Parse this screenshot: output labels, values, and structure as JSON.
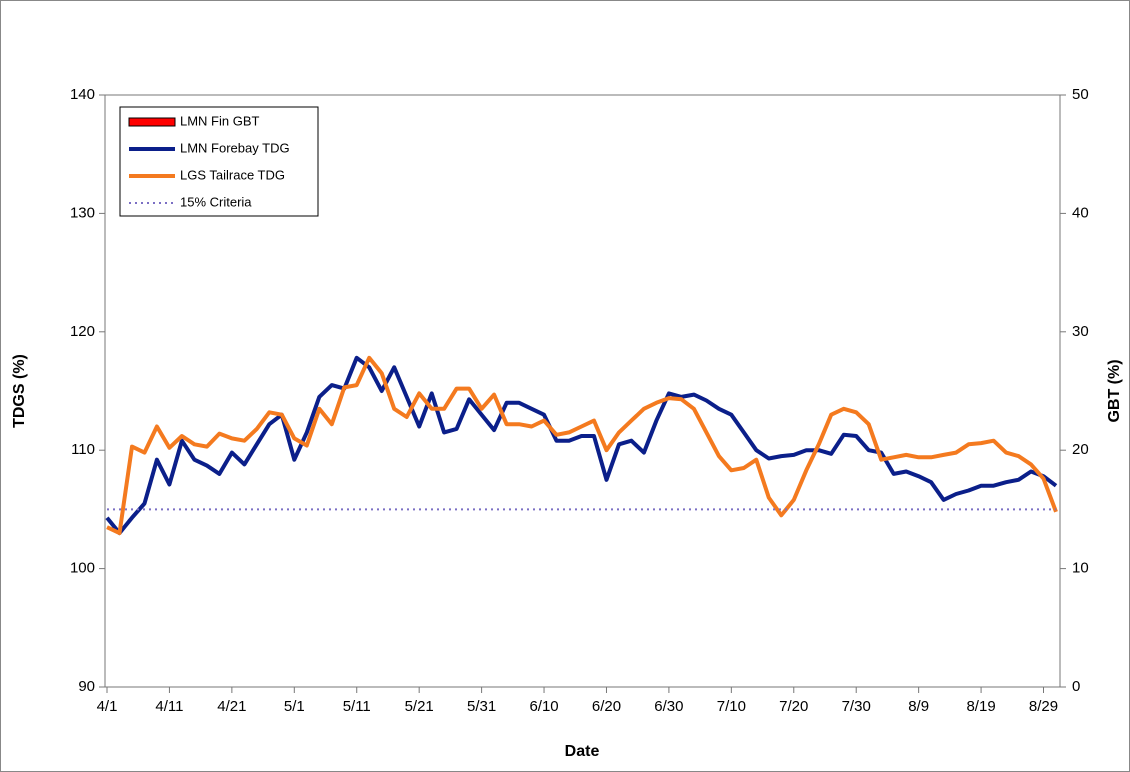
{
  "chart_data": {
    "type": "line",
    "xlabel": "Date",
    "ylabel": "TDGS (%)",
    "y2label": "GBT (%)",
    "x": [
      "4/1",
      "4/3",
      "4/5",
      "4/7",
      "4/9",
      "4/11",
      "4/13",
      "4/15",
      "4/17",
      "4/19",
      "4/21",
      "4/23",
      "4/25",
      "4/27",
      "4/29",
      "5/1",
      "5/3",
      "5/5",
      "5/7",
      "5/9",
      "5/11",
      "5/13",
      "5/15",
      "5/17",
      "5/19",
      "5/21",
      "5/23",
      "5/25",
      "5/27",
      "5/29",
      "5/31",
      "6/2",
      "6/4",
      "6/6",
      "6/8",
      "6/10",
      "6/12",
      "6/14",
      "6/16",
      "6/18",
      "6/20",
      "6/22",
      "6/24",
      "6/26",
      "6/28",
      "6/30",
      "7/2",
      "7/4",
      "7/6",
      "7/8",
      "7/10",
      "7/12",
      "7/14",
      "7/16",
      "7/18",
      "7/20",
      "7/22",
      "7/24",
      "7/26",
      "7/28",
      "7/30",
      "8/1",
      "8/3",
      "8/5",
      "8/7",
      "8/9",
      "8/11",
      "8/13",
      "8/15",
      "8/17",
      "8/19",
      "8/21",
      "8/23",
      "8/25",
      "8/27",
      "8/29",
      "8/31"
    ],
    "xticks": [
      "4/1",
      "4/11",
      "4/21",
      "5/1",
      "5/11",
      "5/21",
      "5/31",
      "6/10",
      "6/20",
      "6/30",
      "7/10",
      "7/20",
      "7/30",
      "8/9",
      "8/19",
      "8/29"
    ],
    "ylim": [
      90,
      140
    ],
    "yticks": [
      90,
      100,
      110,
      120,
      130,
      140
    ],
    "y2lim": [
      0,
      50
    ],
    "y2ticks": [
      0,
      10,
      20,
      30,
      40,
      50
    ],
    "legend": "upper left",
    "series": [
      {
        "name": "LMN Fin GBT",
        "color": "#ff0000",
        "kind": "bar",
        "axis": "y2",
        "values": [
          null,
          null,
          null,
          null,
          null,
          null,
          null,
          null,
          null,
          null,
          null,
          null,
          null,
          null,
          null,
          null,
          null,
          null,
          null,
          null,
          null,
          null,
          null,
          null,
          null,
          null,
          null,
          null,
          null,
          null,
          null,
          null,
          null,
          null,
          null,
          null,
          null,
          null,
          null,
          null,
          null,
          null,
          null,
          null,
          null,
          null,
          null,
          null,
          null,
          null,
          null,
          null,
          null,
          null,
          null,
          null,
          null,
          null,
          null,
          null,
          null,
          null,
          null,
          null,
          null,
          null,
          null,
          null,
          null,
          null,
          null,
          null,
          null,
          null,
          null,
          null,
          null
        ]
      },
      {
        "name": "LMN Forebay TDG",
        "color": "#0b1f8a",
        "kind": "line",
        "values": [
          104.3,
          103.0,
          104.3,
          105.5,
          109.2,
          107.1,
          110.8,
          109.2,
          108.7,
          108.0,
          109.8,
          108.8,
          110.5,
          112.2,
          113.0,
          109.2,
          111.5,
          114.5,
          115.5,
          115.2,
          117.8,
          117.0,
          115.0,
          117.0,
          114.5,
          112.0,
          114.8,
          111.5,
          111.8,
          114.3,
          113.0,
          111.7,
          114.0,
          114.0,
          113.5,
          113.0,
          110.8,
          110.8,
          111.2,
          111.2,
          107.5,
          110.5,
          110.8,
          109.8,
          112.5,
          114.8,
          114.5,
          114.7,
          114.2,
          113.5,
          113.0,
          111.5,
          110.0,
          109.3,
          109.5,
          109.6,
          110.0,
          110.0,
          109.7,
          111.3,
          111.2,
          110.0,
          109.8,
          108.0,
          108.2,
          107.8,
          107.3,
          105.8,
          106.3,
          106.6,
          107.0,
          107.0,
          107.3,
          107.5,
          108.2,
          107.8,
          107.0
        ]
      },
      {
        "name": "LGS Tailrace TDG",
        "color": "#f47a1f",
        "kind": "line",
        "values": [
          103.5,
          103.0,
          110.3,
          109.8,
          112.0,
          110.2,
          111.2,
          110.5,
          110.3,
          111.4,
          111.0,
          110.8,
          111.8,
          113.2,
          113.0,
          111.0,
          110.4,
          113.5,
          112.2,
          115.3,
          115.5,
          117.8,
          116.5,
          113.5,
          112.8,
          114.8,
          113.5,
          113.5,
          115.2,
          115.2,
          113.5,
          114.7,
          112.2,
          112.2,
          112.0,
          112.5,
          111.3,
          111.5,
          112.0,
          112.5,
          110.0,
          111.5,
          112.5,
          113.5,
          114.0,
          114.4,
          114.3,
          113.5,
          111.5,
          109.5,
          108.3,
          108.5,
          109.2,
          106.0,
          104.5,
          105.8,
          108.3,
          110.5,
          113.0,
          113.5,
          113.2,
          112.2,
          109.2,
          109.4,
          109.6,
          109.4,
          109.4,
          109.6,
          109.8,
          110.5,
          110.6,
          110.8,
          109.8,
          109.5,
          108.8,
          107.6,
          104.8
        ]
      },
      {
        "name": "15% Criteria",
        "color": "#7b6fc4",
        "kind": "dotted",
        "values": [
          105,
          105,
          105,
          105,
          105,
          105,
          105,
          105,
          105,
          105,
          105,
          105,
          105,
          105,
          105,
          105,
          105,
          105,
          105,
          105,
          105,
          105,
          105,
          105,
          105,
          105,
          105,
          105,
          105,
          105,
          105,
          105,
          105,
          105,
          105,
          105,
          105,
          105,
          105,
          105,
          105,
          105,
          105,
          105,
          105,
          105,
          105,
          105,
          105,
          105,
          105,
          105,
          105,
          105,
          105,
          105,
          105,
          105,
          105,
          105,
          105,
          105,
          105,
          105,
          105,
          105,
          105,
          105,
          105,
          105,
          105,
          105,
          105,
          105,
          105,
          105,
          105
        ]
      }
    ]
  }
}
